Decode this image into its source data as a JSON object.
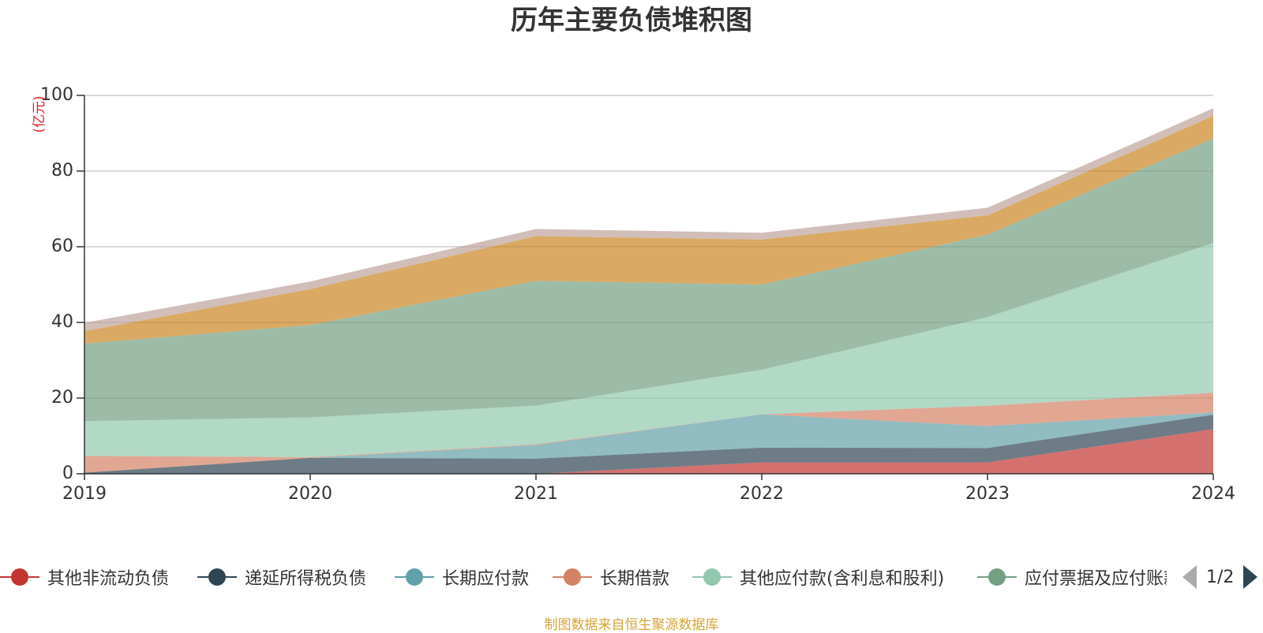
{
  "title": "历年主要负债堆积图",
  "source": "制图数据来自恒生聚源数据库",
  "legend_page": "1/2",
  "chart_data": {
    "type": "area",
    "stacked": true,
    "title": "历年主要负债堆积图",
    "ylabel": "(亿元)",
    "ylim": [
      0,
      100
    ],
    "yticks": [
      0,
      20,
      40,
      60,
      80,
      100
    ],
    "x": [
      "2019",
      "2020",
      "2021",
      "2022",
      "2023",
      "2024"
    ],
    "grid": true,
    "legend_position": "bottom",
    "series": [
      {
        "name": "其他非流动负债",
        "color": "#c23531",
        "values": [
          0,
          0,
          0,
          3,
          3,
          11.8
        ]
      },
      {
        "name": "递延所得税负债",
        "color": "#2f4554",
        "values": [
          0.3,
          4.2,
          4.0,
          3.9,
          3.8,
          3.8
        ]
      },
      {
        "name": "长期应付款",
        "color": "#61a0a8",
        "values": [
          0,
          0,
          3.6,
          8.8,
          5.8,
          0.6
        ]
      },
      {
        "name": "长期借款",
        "color": "#d48265",
        "values": [
          4.4,
          0.2,
          0.2,
          0,
          5.4,
          5.2
        ]
      },
      {
        "name": "其他应付款(含利息和股利)",
        "color": "#91c7ae",
        "values": [
          9.2,
          10.5,
          10.2,
          11.8,
          23.4,
          39.6
        ]
      },
      {
        "name": "应付票据及应付账款",
        "color": "#749f83",
        "values": [
          20.5,
          24.4,
          33,
          22.5,
          21.8,
          27.6
        ]
      },
      {
        "name": "",
        "color": "#ca8622",
        "values": [
          3.3,
          9.5,
          11.8,
          11.9,
          5.1,
          6
        ]
      },
      {
        "name": "",
        "color": "#bda29a",
        "values": [
          2.2,
          2,
          1.9,
          1.8,
          2,
          2
        ]
      }
    ]
  }
}
